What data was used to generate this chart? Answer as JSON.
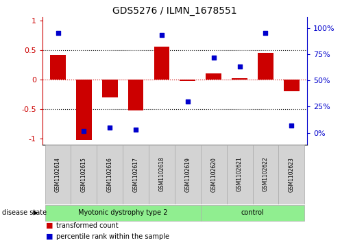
{
  "title": "GDS5276 / ILMN_1678551",
  "samples": [
    "GSM1102614",
    "GSM1102615",
    "GSM1102616",
    "GSM1102617",
    "GSM1102618",
    "GSM1102619",
    "GSM1102620",
    "GSM1102621",
    "GSM1102622",
    "GSM1102623"
  ],
  "bar_values": [
    0.42,
    -1.02,
    -0.3,
    -0.52,
    0.55,
    -0.02,
    0.1,
    0.02,
    0.45,
    -0.2
  ],
  "dot_values": [
    95,
    2,
    5,
    3,
    93,
    30,
    72,
    63,
    95,
    7
  ],
  "groups": [
    {
      "label": "Myotonic dystrophy type 2",
      "start": 0,
      "end": 6
    },
    {
      "label": "control",
      "start": 6,
      "end": 10
    }
  ],
  "bar_color": "#cc0000",
  "dot_color": "#0000cc",
  "ylim_left": [
    -1.1,
    1.05
  ],
  "ylim_right": [
    -11,
    110
  ],
  "yticks_left": [
    -1,
    -0.5,
    0,
    0.5,
    1
  ],
  "yticks_right": [
    0,
    25,
    50,
    75,
    100
  ],
  "ytick_labels_left": [
    "-1",
    "-0.5",
    "0",
    "0.5",
    "1"
  ],
  "ytick_labels_right": [
    "0%",
    "25%",
    "50%",
    "75%",
    "100%"
  ],
  "hlines_dotted": [
    0.5,
    -0.5
  ],
  "hline_dashed_color": "#cc0000",
  "disease_state_label": "disease state",
  "legend_bar_label": "transformed count",
  "legend_dot_label": "percentile rank within the sample",
  "sample_box_color": "#d3d3d3",
  "group_color": "#90ee90",
  "group_border_color": "#aaaaaa"
}
